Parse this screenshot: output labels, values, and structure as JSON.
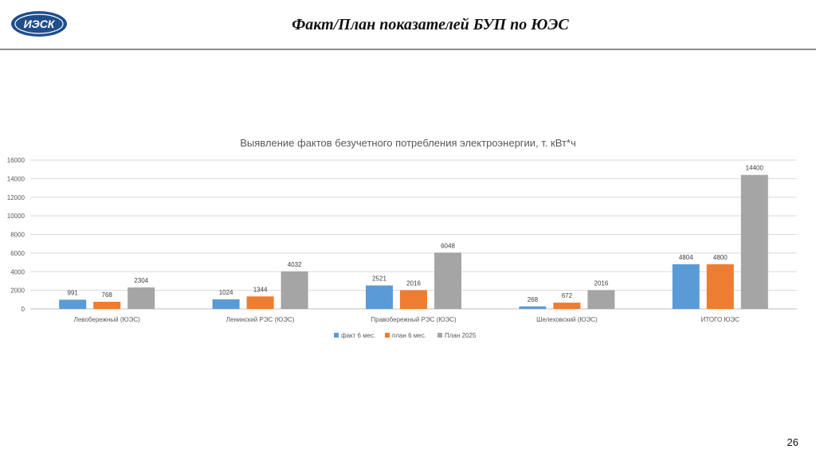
{
  "header": {
    "logo_text": "ИЭСК",
    "title": "Факт/План показателей БУП по ЮЭС"
  },
  "page_number": "26",
  "colors": {
    "fact": "#5b9bd5",
    "plan_6": "#ed7d31",
    "plan_year": "#a5a5a5",
    "logo": "#1f4e8c"
  },
  "chart_data": {
    "type": "bar",
    "title": "Выявление фактов безучетного потребления электроэнергии, т. кВт*ч",
    "categories": [
      "Левобережный (ЮЭС)",
      "Ленинский РЭС (ЮЭС)",
      "Правобережный РЭС (ЮЭС)",
      "Шелеховский (ЮЭС)",
      "ИТОГО ЮЭС"
    ],
    "series": [
      {
        "name": "факт 6 мес.",
        "color": "#5b9bd5",
        "values": [
          991,
          1024,
          2521,
          268,
          4804
        ]
      },
      {
        "name": "план 6 мес.",
        "color": "#ed7d31",
        "values": [
          768,
          1344,
          2016,
          672,
          4800
        ]
      },
      {
        "name": "План 2025",
        "color": "#a5a5a5",
        "values": [
          2304,
          4032,
          6048,
          2016,
          14400
        ]
      }
    ],
    "ylim": [
      0,
      16000
    ],
    "yticks": [
      0,
      2000,
      4000,
      6000,
      8000,
      10000,
      12000,
      14000,
      16000
    ],
    "grid": true,
    "legend": "bottom",
    "data_labels": true
  }
}
